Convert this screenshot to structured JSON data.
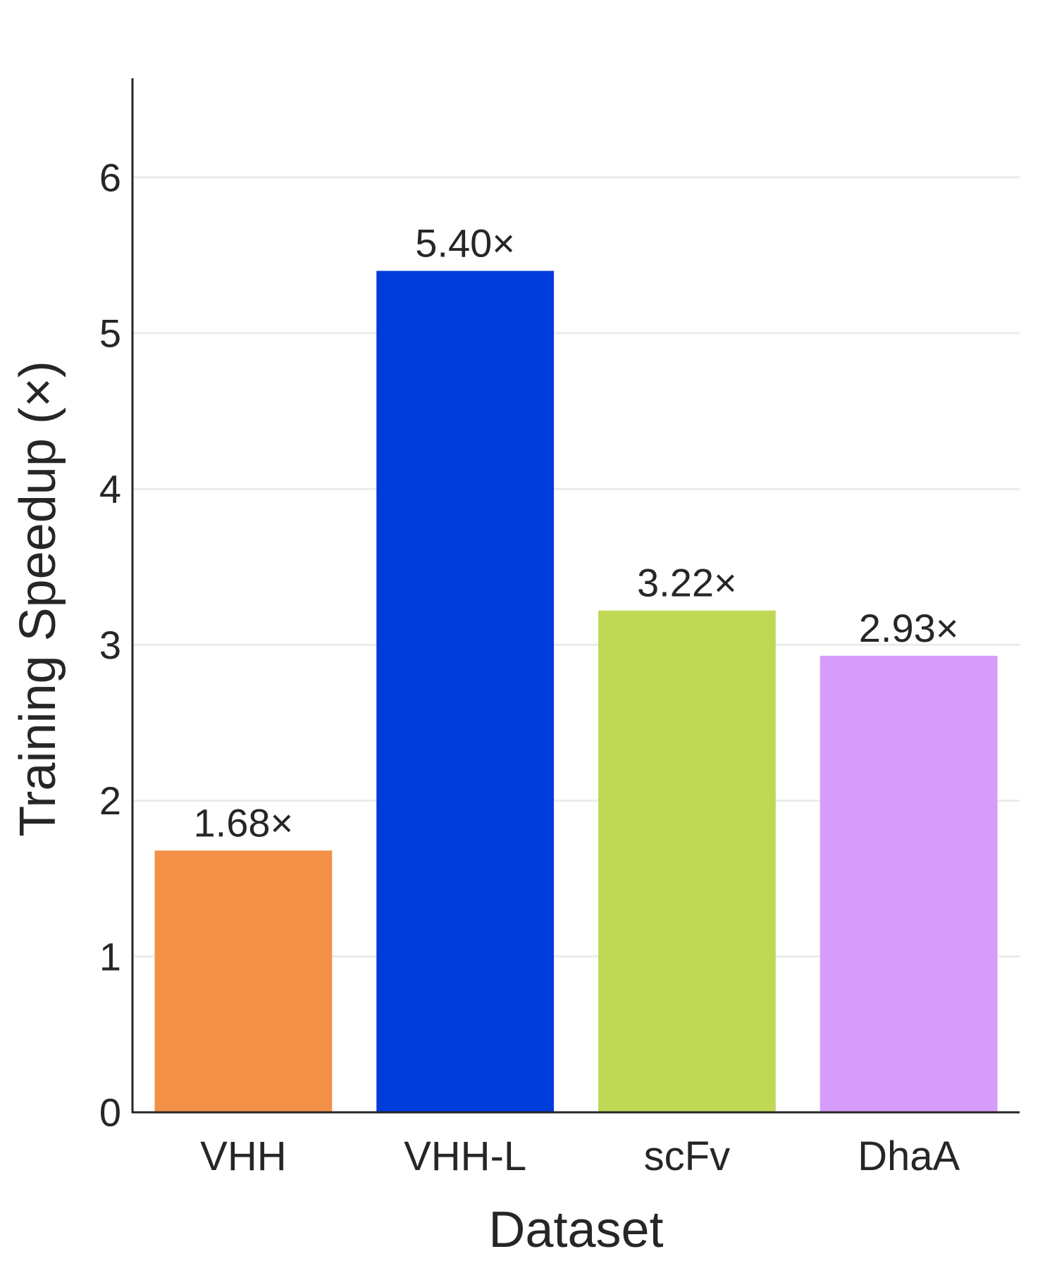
{
  "chart_data": {
    "type": "bar",
    "title": "",
    "xlabel": "Dataset",
    "ylabel": "Training Speedup (×)",
    "categories": [
      "VHH",
      "VHH-L",
      "scFv",
      "DhaA"
    ],
    "values": [
      1.68,
      5.4,
      3.22,
      2.93
    ],
    "value_labels": [
      "1.68×",
      "5.40×",
      "3.22×",
      "2.93×"
    ],
    "colors": [
      "#f39047",
      "#003cdc",
      "#bfd957",
      "#d69cf9"
    ],
    "ylim": [
      0,
      6.6
    ],
    "yticks": [
      0,
      1,
      2,
      3,
      4,
      5,
      6
    ],
    "grid": true,
    "grid_color": "#ebebeb",
    "axis_color": "#262626",
    "text_color": "#262626",
    "legend": "none"
  }
}
